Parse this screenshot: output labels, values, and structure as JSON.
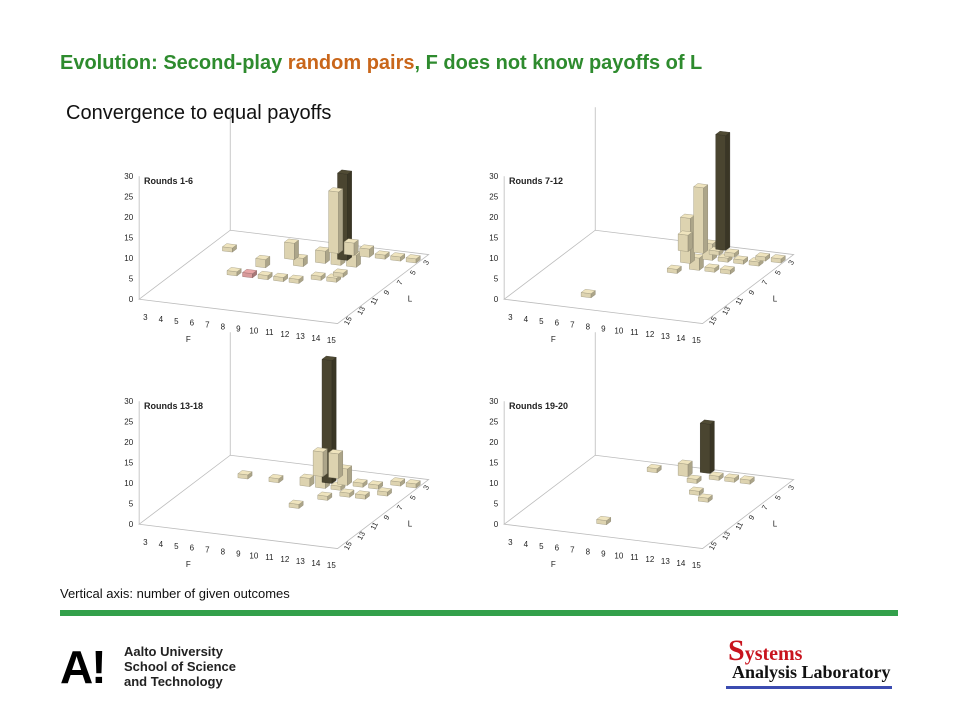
{
  "slide": {
    "title_part1": "Evolution: Second-play ",
    "title_highlight": "random pairs",
    "title_part2": ", F does not know payoffs of L",
    "subtitle": "Convergence to equal payoffs",
    "footnote": "Vertical axis: number of given outcomes"
  },
  "logos": {
    "aalto_mark": "A!",
    "aalto_line1": "Aalto University",
    "aalto_line2": "School of Science",
    "aalto_line3": "and Technology",
    "sal_cap": "S",
    "sal_word1": "ystems",
    "sal_word2": "Analysis Laboratory"
  },
  "colors": {
    "title": "#2e8b2e",
    "highlight": "#c9661a",
    "bar_light": "#ddd3b0",
    "bar_dark": "#4a4530",
    "bar_red": "#d89a9a",
    "rule": "#33a04b"
  },
  "chart_data": [
    {
      "type": "bar3d",
      "title": "Rounds 1-6",
      "xlabel": "F",
      "ylabel": "L",
      "x_ticks": [
        "3",
        "4",
        "5",
        "6",
        "7",
        "8",
        "9",
        "10",
        "11",
        "12",
        "13",
        "14",
        "15"
      ],
      "y_ticks": [
        "3",
        "5",
        "7",
        "9",
        "11",
        "13",
        "15"
      ],
      "z_ticks": [
        "0",
        "5",
        "10",
        "15",
        "20",
        "25",
        "30"
      ],
      "zlim": [
        0,
        30
      ],
      "bars": [
        {
          "f": 4,
          "l": 5,
          "v": 1
        },
        {
          "f": 6,
          "l": 9,
          "v": 1
        },
        {
          "f": 7,
          "l": 7,
          "v": 2
        },
        {
          "f": 7,
          "l": 9,
          "v": 1,
          "color": "red"
        },
        {
          "f": 8,
          "l": 5,
          "v": 4
        },
        {
          "f": 8,
          "l": 9,
          "v": 1
        },
        {
          "f": 9,
          "l": 9,
          "v": 1
        },
        {
          "f": 9,
          "l": 6,
          "v": 2
        },
        {
          "f": 10,
          "l": 3,
          "v": 15
        },
        {
          "f": 10,
          "l": 5,
          "v": 3
        },
        {
          "f": 10,
          "l": 9,
          "v": 1
        },
        {
          "f": 11,
          "l": 3,
          "v": 3
        },
        {
          "f": 11,
          "l": 4,
          "v": 21,
          "color": "dark"
        },
        {
          "f": 11,
          "l": 5,
          "v": 7
        },
        {
          "f": 11,
          "l": 8,
          "v": 1
        },
        {
          "f": 12,
          "l": 5,
          "v": 3
        },
        {
          "f": 12,
          "l": 8,
          "v": 1
        },
        {
          "f": 12,
          "l": 3,
          "v": 2
        },
        {
          "f": 13,
          "l": 3,
          "v": 1
        },
        {
          "f": 14,
          "l": 3,
          "v": 1
        },
        {
          "f": 15,
          "l": 3,
          "v": 1
        },
        {
          "f": 12,
          "l": 7,
          "v": 1
        }
      ]
    },
    {
      "type": "bar3d",
      "title": "Rounds 7-12",
      "xlabel": "F",
      "ylabel": "L",
      "x_ticks": [
        "3",
        "4",
        "5",
        "6",
        "7",
        "8",
        "9",
        "10",
        "11",
        "12",
        "13",
        "14",
        "15"
      ],
      "y_ticks": [
        "3",
        "5",
        "7",
        "9",
        "11",
        "13",
        "15"
      ],
      "z_ticks": [
        "0",
        "5",
        "10",
        "15",
        "20",
        "25",
        "30"
      ],
      "zlim": [
        0,
        30
      ],
      "bars": [
        {
          "f": 7,
          "l": 13,
          "v": 1
        },
        {
          "f": 9,
          "l": 3,
          "v": 4
        },
        {
          "f": 10,
          "l": 3,
          "v": 16
        },
        {
          "f": 10,
          "l": 5,
          "v": 11
        },
        {
          "f": 11,
          "l": 3,
          "v": 1
        },
        {
          "f": 11,
          "l": 2,
          "v": 28,
          "color": "dark"
        },
        {
          "f": 11,
          "l": 4,
          "v": 4
        },
        {
          "f": 11,
          "l": 6,
          "v": 3
        },
        {
          "f": 12,
          "l": 4,
          "v": 1
        },
        {
          "f": 12,
          "l": 6,
          "v": 1
        },
        {
          "f": 12,
          "l": 3,
          "v": 1
        },
        {
          "f": 13,
          "l": 4,
          "v": 1
        },
        {
          "f": 14,
          "l": 4,
          "v": 1
        },
        {
          "f": 14,
          "l": 3,
          "v": 1
        },
        {
          "f": 15,
          "l": 3,
          "v": 1
        },
        {
          "f": 13,
          "l": 6,
          "v": 1
        },
        {
          "f": 10,
          "l": 7,
          "v": 1
        }
      ]
    },
    {
      "type": "bar3d",
      "title": "Rounds 13-18",
      "xlabel": "F",
      "ylabel": "L",
      "x_ticks": [
        "3",
        "4",
        "5",
        "6",
        "7",
        "8",
        "9",
        "10",
        "11",
        "12",
        "13",
        "14",
        "15"
      ],
      "y_ticks": [
        "3",
        "5",
        "7",
        "9",
        "11",
        "13",
        "15"
      ],
      "z_ticks": [
        "0",
        "5",
        "10",
        "15",
        "20",
        "25",
        "30"
      ],
      "zlim": [
        0,
        30
      ],
      "bars": [
        {
          "f": 5,
          "l": 5,
          "v": 1
        },
        {
          "f": 7,
          "l": 5,
          "v": 1
        },
        {
          "f": 9,
          "l": 3,
          "v": 6
        },
        {
          "f": 9,
          "l": 5,
          "v": 2
        },
        {
          "f": 10,
          "l": 3,
          "v": 6
        },
        {
          "f": 10,
          "l": 4,
          "v": 30,
          "color": "dark"
        },
        {
          "f": 10,
          "l": 5,
          "v": 3
        },
        {
          "f": 10,
          "l": 9,
          "v": 1
        },
        {
          "f": 11,
          "l": 4,
          "v": 4
        },
        {
          "f": 11,
          "l": 5,
          "v": 1
        },
        {
          "f": 11,
          "l": 7,
          "v": 1
        },
        {
          "f": 12,
          "l": 4,
          "v": 1
        },
        {
          "f": 12,
          "l": 6,
          "v": 1
        },
        {
          "f": 13,
          "l": 4,
          "v": 1
        },
        {
          "f": 13,
          "l": 6,
          "v": 1
        },
        {
          "f": 14,
          "l": 3,
          "v": 1
        },
        {
          "f": 14,
          "l": 5,
          "v": 1
        },
        {
          "f": 15,
          "l": 3,
          "v": 1
        }
      ]
    },
    {
      "type": "bar3d",
      "title": "Rounds 19-20",
      "xlabel": "F",
      "ylabel": "L",
      "x_ticks": [
        "3",
        "4",
        "5",
        "6",
        "7",
        "8",
        "9",
        "10",
        "11",
        "12",
        "13",
        "14",
        "15"
      ],
      "y_ticks": [
        "3",
        "5",
        "7",
        "9",
        "11",
        "13",
        "15"
      ],
      "z_ticks": [
        "0",
        "5",
        "10",
        "15",
        "20",
        "25",
        "30"
      ],
      "zlim": [
        0,
        30
      ],
      "bars": [
        {
          "f": 7,
          "l": 3,
          "v": 1
        },
        {
          "f": 8,
          "l": 13,
          "v": 1
        },
        {
          "f": 9,
          "l": 3,
          "v": 3
        },
        {
          "f": 10,
          "l": 2,
          "v": 12,
          "color": "dark"
        },
        {
          "f": 10,
          "l": 4,
          "v": 1
        },
        {
          "f": 11,
          "l": 3,
          "v": 1
        },
        {
          "f": 11,
          "l": 6,
          "v": 1
        },
        {
          "f": 12,
          "l": 3,
          "v": 1
        },
        {
          "f": 12,
          "l": 7,
          "v": 1
        },
        {
          "f": 13,
          "l": 3,
          "v": 1
        }
      ]
    }
  ]
}
